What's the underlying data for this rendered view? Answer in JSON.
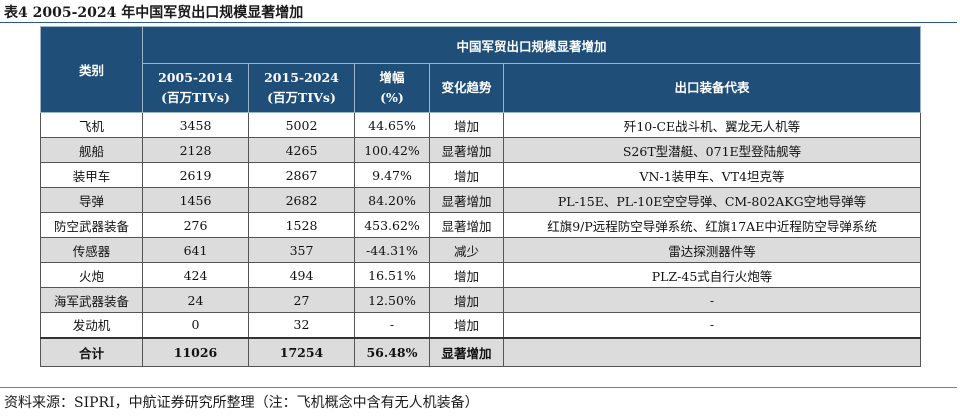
{
  "caption": "表4  2005-2024 年中国军贸出口规模显著增加",
  "table": {
    "category_header": "类别",
    "main_title": "中国军贸出口规模显著增加",
    "col_2005_line1": "2005-2014",
    "col_2005_line2": "(百万TIVs)",
    "col_2015_line1": "2015-2024",
    "col_2015_line2": "(百万TIVs)",
    "col_growth_line1": "增幅",
    "col_growth_line2": "(%)",
    "col_trend": "变化趋势",
    "col_items": "出口装备代表",
    "rows": [
      {
        "category": "飞机",
        "v1": "3458",
        "v2": "5002",
        "growth": "44.65%",
        "trend": "增加",
        "items": "歼10-CE战斗机、翼龙无人机等"
      },
      {
        "category": "舰船",
        "v1": "2128",
        "v2": "4265",
        "growth": "100.42%",
        "trend": "显著增加",
        "items": "S26T型潜艇、071E型登陆舰等"
      },
      {
        "category": "装甲车",
        "v1": "2619",
        "v2": "2867",
        "growth": "9.47%",
        "trend": "增加",
        "items": "VN-1装甲车、VT4坦克等"
      },
      {
        "category": "导弹",
        "v1": "1456",
        "v2": "2682",
        "growth": "84.20%",
        "trend": "显著增加",
        "items": "PL-15E、PL-10E空空导弹、CM-802AKG空地导弹等"
      },
      {
        "category": "防空武器装备",
        "v1": "276",
        "v2": "1528",
        "growth": "453.62%",
        "trend": "显著增加",
        "items": "红旗9/P远程防空导弹系统、红旗17AE中近程防空导弹系统"
      },
      {
        "category": "传感器",
        "v1": "641",
        "v2": "357",
        "growth": "-44.31%",
        "trend": "减少",
        "items": "雷达探测器件等"
      },
      {
        "category": "火炮",
        "v1": "424",
        "v2": "494",
        "growth": "16.51%",
        "trend": "增加",
        "items": "PLZ-45式自行火炮等"
      },
      {
        "category": "海军武器装备",
        "v1": "24",
        "v2": "27",
        "growth": "12.50%",
        "trend": "增加",
        "items": "-"
      },
      {
        "category": "发动机",
        "v1": "0",
        "v2": "32",
        "growth": "-",
        "trend": "增加",
        "items": "-"
      }
    ],
    "total": {
      "category": "合计",
      "v1": "11026",
      "v2": "17254",
      "growth": "56.48%",
      "trend": "显著增加",
      "items": ""
    }
  },
  "footnote": "资料来源：SIPRI，中航证券研究所整理（注：飞机概念中含有无人机装备）",
  "colors": {
    "header_bg": "#1f4e79",
    "alt_row_bg": "#dcdcdc",
    "rule": "#2b5b84"
  }
}
